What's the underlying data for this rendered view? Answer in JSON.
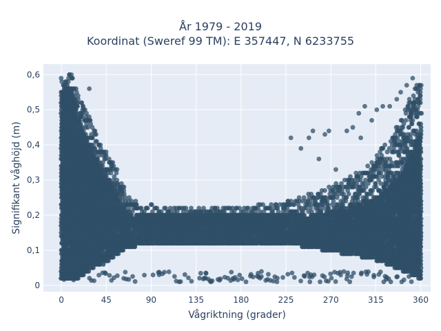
{
  "chart_data": {
    "type": "scatter",
    "title_lines": [
      "År 1979 - 2019",
      "Koordinat (Sweref 99 TM): E 357447, N 6233755"
    ],
    "xlabel": "Vågriktning (grader)",
    "ylabel": "Signifikant våghöjd (m)",
    "xlim": [
      -18,
      370
    ],
    "ylim": [
      -0.018,
      0.63
    ],
    "x_ticks": [
      0,
      45,
      90,
      135,
      180,
      225,
      270,
      315,
      360
    ],
    "x_tick_labels": [
      "0",
      "45",
      "90",
      "135",
      "180",
      "225",
      "270",
      "315",
      "360"
    ],
    "y_ticks": [
      0,
      0.1,
      0.2,
      0.3,
      0.4,
      0.5,
      0.6
    ],
    "y_tick_labels": [
      "0",
      "0,1",
      "0,2",
      "0,3",
      "0,4",
      "0,5",
      "0,6"
    ],
    "grid": true,
    "legend": "none",
    "marker_color": "#2f4f67",
    "plot_background": "#e5ecf6",
    "envelope": {
      "description_x": [
        0,
        3,
        6,
        10,
        15,
        20,
        25,
        30,
        35,
        40,
        45,
        50,
        55,
        60,
        65,
        70,
        80,
        90,
        100,
        120,
        150,
        180,
        200,
        230,
        250,
        270,
        290,
        310,
        330,
        345,
        355,
        360
      ],
      "upper_y": [
        0.59,
        0.59,
        0.6,
        0.6,
        0.58,
        0.52,
        0.5,
        0.47,
        0.43,
        0.4,
        0.38,
        0.36,
        0.34,
        0.3,
        0.27,
        0.25,
        0.23,
        0.23,
        0.22,
        0.22,
        0.22,
        0.22,
        0.23,
        0.24,
        0.26,
        0.28,
        0.31,
        0.35,
        0.42,
        0.5,
        0.57,
        0.59
      ],
      "dense_upper_y": [
        0.55,
        0.56,
        0.57,
        0.56,
        0.5,
        0.45,
        0.42,
        0.39,
        0.36,
        0.33,
        0.31,
        0.29,
        0.26,
        0.23,
        0.21,
        0.2,
        0.2,
        0.2,
        0.2,
        0.2,
        0.2,
        0.2,
        0.2,
        0.2,
        0.2,
        0.21,
        0.22,
        0.24,
        0.28,
        0.34,
        0.4,
        0.45
      ],
      "dense_lower_y": [
        0.02,
        0.02,
        0.02,
        0.02,
        0.02,
        0.03,
        0.04,
        0.05,
        0.06,
        0.06,
        0.07,
        0.08,
        0.09,
        0.1,
        0.11,
        0.11,
        0.12,
        0.12,
        0.12,
        0.12,
        0.12,
        0.12,
        0.12,
        0.12,
        0.11,
        0.1,
        0.09,
        0.08,
        0.06,
        0.04,
        0.03,
        0.02
      ]
    },
    "outliers": [
      {
        "x": 28,
        "y": 0.56
      },
      {
        "x": 10,
        "y": 0.6
      },
      {
        "x": 240,
        "y": 0.39
      },
      {
        "x": 248,
        "y": 0.42
      },
      {
        "x": 252,
        "y": 0.44
      },
      {
        "x": 264,
        "y": 0.43
      },
      {
        "x": 268,
        "y": 0.44
      },
      {
        "x": 286,
        "y": 0.44
      },
      {
        "x": 292,
        "y": 0.45
      },
      {
        "x": 298,
        "y": 0.49
      },
      {
        "x": 304,
        "y": 0.51
      },
      {
        "x": 311,
        "y": 0.47
      },
      {
        "x": 316,
        "y": 0.5
      },
      {
        "x": 322,
        "y": 0.51
      },
      {
        "x": 329,
        "y": 0.51
      },
      {
        "x": 336,
        "y": 0.53
      },
      {
        "x": 340,
        "y": 0.55
      },
      {
        "x": 346,
        "y": 0.57
      },
      {
        "x": 352,
        "y": 0.59
      },
      {
        "x": 230,
        "y": 0.42
      },
      {
        "x": 258,
        "y": 0.36
      },
      {
        "x": 275,
        "y": 0.33
      },
      {
        "x": 300,
        "y": 0.42
      },
      {
        "x": 185,
        "y": 0.01
      },
      {
        "x": 216,
        "y": 0.01
      },
      {
        "x": 249,
        "y": 0.01
      },
      {
        "x": 289,
        "y": 0.01
      },
      {
        "x": 323,
        "y": 0.01
      },
      {
        "x": 330,
        "y": 0.01
      },
      {
        "x": 341,
        "y": 0.01
      },
      {
        "x": 150,
        "y": 0.01
      },
      {
        "x": 118,
        "y": 0.01
      }
    ]
  }
}
